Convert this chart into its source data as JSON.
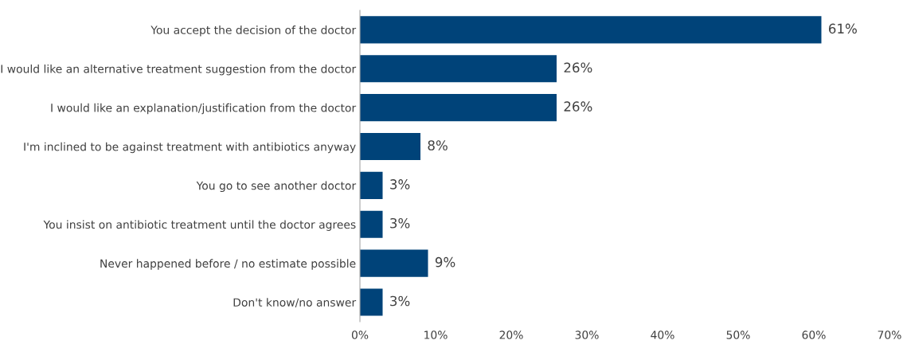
{
  "chart_data": {
    "type": "bar",
    "orientation": "horizontal",
    "categories": [
      "You accept the decision of the doctor",
      "I would like an alternative treatment suggestion from the doctor",
      "I would like an explanation/justification from the doctor",
      "I'm inclined to be against treatment with antibiotics anyway",
      "You go to see another doctor",
      "You insist on antibiotic treatment until the doctor agrees",
      "Never happened before / no estimate possible",
      "Don't know/no answer"
    ],
    "values": [
      61,
      26,
      26,
      8,
      3,
      3,
      9,
      3
    ],
    "value_labels": [
      "61%",
      "26%",
      "26%",
      "8%",
      "3%",
      "3%",
      "9%",
      "3%"
    ],
    "color": "#004379",
    "xlim": [
      0,
      70
    ],
    "xticks": [
      {
        "value": 0,
        "label": "0%"
      },
      {
        "value": 10,
        "label": "10%"
      },
      {
        "value": 20,
        "label": "20%"
      },
      {
        "value": 30,
        "label": "30%"
      },
      {
        "value": 40,
        "label": "40%"
      },
      {
        "value": 50,
        "label": "50%"
      },
      {
        "value": 60,
        "label": "60%"
      },
      {
        "value": 70,
        "label": "70%"
      }
    ],
    "grid": false,
    "legend": false
  }
}
